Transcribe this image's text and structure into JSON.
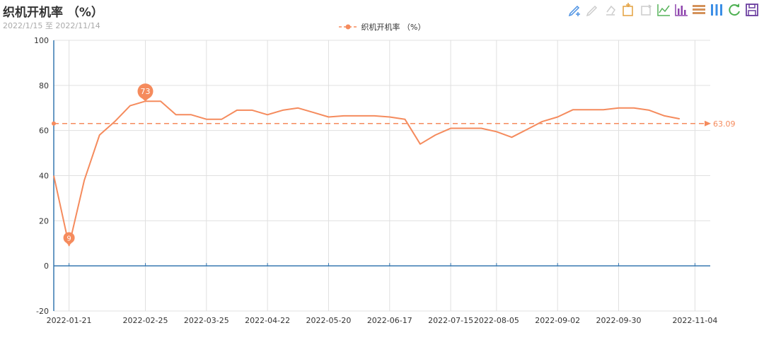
{
  "header": {
    "title": "织机开机率 （%）",
    "subtitle": "2022/1/15 至 2022/11/14"
  },
  "toolbox": [
    {
      "name": "mark-pen-icon",
      "color": "#4a90e2"
    },
    {
      "name": "mark-undo-icon",
      "color": "#cccccc"
    },
    {
      "name": "mark-clear-icon",
      "color": "#cccccc"
    },
    {
      "name": "zoom-select-icon",
      "color": "#e3a03e"
    },
    {
      "name": "zoom-reset-icon",
      "color": "#cccccc"
    },
    {
      "name": "line-chart-icon",
      "color": "#56b35a"
    },
    {
      "name": "bar-chart-icon",
      "color": "#8e44ad"
    },
    {
      "name": "stack-icon",
      "color": "#d4925a"
    },
    {
      "name": "tiled-icon",
      "color": "#3a8ee6"
    },
    {
      "name": "restore-icon",
      "color": "#4caf50"
    },
    {
      "name": "save-image-icon",
      "color": "#6c3fa0"
    }
  ],
  "chart_data": {
    "type": "line",
    "title": "织机开机率 （%）",
    "subtitle": "2022/1/15 至 2022/11/14",
    "series": [
      {
        "name": "织机开机率 （%）",
        "color": "#f58b5d",
        "points": [
          [
            "2022-01-14",
            40
          ],
          [
            "2022-01-21",
            9
          ],
          [
            "2022-01-28",
            38
          ],
          [
            "2022-02-04",
            58
          ],
          [
            "2022-02-11",
            64
          ],
          [
            "2022-02-18",
            71
          ],
          [
            "2022-02-25",
            73
          ],
          [
            "2022-03-04",
            73
          ],
          [
            "2022-03-11",
            67
          ],
          [
            "2022-03-18",
            67
          ],
          [
            "2022-03-25",
            65
          ],
          [
            "2022-04-01",
            65
          ],
          [
            "2022-04-08",
            69
          ],
          [
            "2022-04-15",
            69
          ],
          [
            "2022-04-22",
            67
          ],
          [
            "2022-04-29",
            69
          ],
          [
            "2022-05-06",
            70
          ],
          [
            "2022-05-13",
            68
          ],
          [
            "2022-05-20",
            66
          ],
          [
            "2022-05-27",
            66.5
          ],
          [
            "2022-06-03",
            66.5
          ],
          [
            "2022-06-10",
            66.5
          ],
          [
            "2022-06-17",
            66
          ],
          [
            "2022-06-24",
            65
          ],
          [
            "2022-07-01",
            54
          ],
          [
            "2022-07-08",
            58
          ],
          [
            "2022-07-15",
            61
          ],
          [
            "2022-07-22",
            61
          ],
          [
            "2022-07-29",
            61
          ],
          [
            "2022-08-05",
            59.5
          ],
          [
            "2022-08-12",
            57
          ],
          [
            "2022-08-19",
            60.5
          ],
          [
            "2022-08-26",
            64
          ],
          [
            "2022-09-02",
            66
          ],
          [
            "2022-09-09",
            69.2
          ],
          [
            "2022-09-16",
            69.2
          ],
          [
            "2022-09-23",
            69.2
          ],
          [
            "2022-09-30",
            70
          ],
          [
            "2022-10-07",
            70
          ],
          [
            "2022-10-14",
            69
          ],
          [
            "2022-10-21",
            66.5
          ],
          [
            "2022-10-28",
            65.2
          ]
        ]
      }
    ],
    "x_ticks": [
      "2022-01-21",
      "2022-02-25",
      "2022-03-25",
      "2022-04-22",
      "2022-05-20",
      "2022-06-17",
      "2022-07-15",
      "2022-08-05",
      "2022-09-02",
      "2022-09-30",
      "2022-11-04"
    ],
    "x_range": [
      "2022-01-14",
      "2022-11-11"
    ],
    "y_ticks": [
      -20,
      0,
      20,
      40,
      60,
      80,
      100
    ],
    "ylim": [
      -20,
      100
    ],
    "mark_points": [
      {
        "date": "2022-01-21",
        "value": 9,
        "label": "9"
      },
      {
        "date": "2022-02-25",
        "value": 73,
        "label": "73"
      }
    ],
    "mark_line": {
      "value": 63.09,
      "label": "63.09"
    },
    "legend": {
      "position": "top-center",
      "label": "织机开机率 （%）"
    },
    "grid": true
  }
}
